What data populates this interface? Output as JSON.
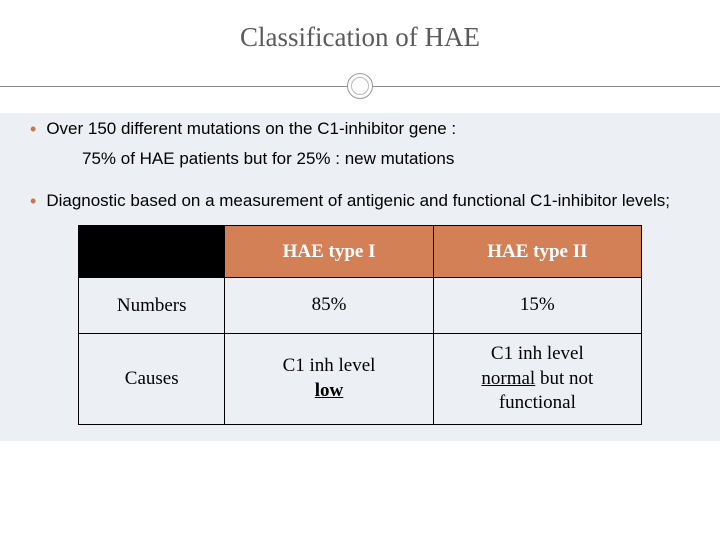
{
  "title": "Classification of HAE",
  "bullets": [
    {
      "main": "Over 150 different mutations on the C1-inhibitor gene :",
      "sub": "75% of HAE patients but for 25% : new mutations"
    },
    {
      "main": "Diagnostic based on a measurement of antigenic and functional C1-inhibitor levels;",
      "sub": ""
    }
  ],
  "table": {
    "headers": [
      "HAE type I",
      "HAE type II"
    ],
    "rows": [
      {
        "label": "Numbers",
        "c1_plain": "85%",
        "c2_plain": "15%"
      },
      {
        "label": "Causes",
        "c1_line1": "C1 inh level",
        "c1_low": "low",
        "c2_line1": "C1 inh level",
        "c2_normal": "normal",
        "c2_rest": " but not functional"
      }
    ]
  },
  "colors": {
    "accent": "#d38057",
    "bullet": "#c2794f",
    "content_bg": "#eceff3"
  }
}
